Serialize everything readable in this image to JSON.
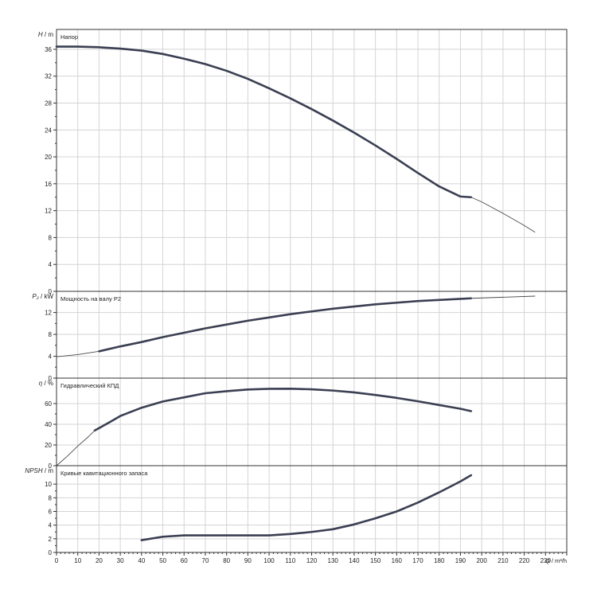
{
  "chart_data": [
    {
      "type": "line",
      "panel_label": "Напор",
      "y_axis_symbol": "H",
      "y_axis_unit": "m",
      "ylim": [
        0,
        38
      ],
      "yticks": [
        0,
        4,
        8,
        12,
        16,
        20,
        24,
        28,
        32,
        36
      ],
      "series": [
        {
          "bold": true,
          "x": [
            0,
            10,
            20,
            30,
            40,
            50,
            60,
            70,
            80,
            90,
            100,
            110,
            120,
            130,
            140,
            150,
            160,
            170,
            180,
            190,
            195
          ],
          "y": [
            36.4,
            36.4,
            36.3,
            36.1,
            35.8,
            35.3,
            34.6,
            33.8,
            32.8,
            31.6,
            30.2,
            28.7,
            27.1,
            25.4,
            23.6,
            21.7,
            19.7,
            17.6,
            15.6,
            14.1,
            14.0
          ]
        },
        {
          "bold": false,
          "x": [
            195,
            200,
            210,
            220,
            225
          ],
          "y": [
            14.0,
            13.3,
            11.6,
            9.8,
            8.8
          ]
        }
      ]
    },
    {
      "type": "line",
      "panel_label": "Мощность на валу P2",
      "y_axis_symbol": "P₂",
      "y_axis_unit": "kW",
      "ylim": [
        0,
        15
      ],
      "yticks": [
        0,
        4,
        8,
        12
      ],
      "series": [
        {
          "bold": false,
          "x": [
            0,
            10,
            20
          ],
          "y": [
            3.9,
            4.3,
            4.9
          ]
        },
        {
          "bold": true,
          "x": [
            20,
            30,
            40,
            50,
            60,
            70,
            80,
            90,
            100,
            110,
            120,
            130,
            140,
            150,
            160,
            170,
            180,
            190,
            195
          ],
          "y": [
            4.9,
            5.8,
            6.6,
            7.5,
            8.3,
            9.1,
            9.8,
            10.5,
            11.1,
            11.7,
            12.2,
            12.7,
            13.1,
            13.5,
            13.8,
            14.1,
            14.3,
            14.5,
            14.6
          ]
        },
        {
          "bold": false,
          "x": [
            195,
            210,
            225
          ],
          "y": [
            14.6,
            14.8,
            15.0
          ]
        }
      ]
    },
    {
      "type": "line",
      "panel_label": "Гидравлический КПД",
      "y_axis_symbol": "η",
      "y_axis_unit": "%",
      "ylim": [
        0,
        80
      ],
      "yticks": [
        0,
        20,
        40,
        60
      ],
      "series": [
        {
          "bold": false,
          "x": [
            0,
            5,
            10,
            15,
            18
          ],
          "y": [
            0,
            9,
            19,
            28,
            34
          ]
        },
        {
          "bold": true,
          "x": [
            18,
            25,
            30,
            40,
            50,
            60,
            70,
            80,
            90,
            100,
            110,
            120,
            130,
            140,
            150,
            160,
            170,
            180,
            190,
            195
          ],
          "y": [
            34,
            42,
            48,
            56,
            62,
            66,
            70,
            72,
            73.6,
            74.3,
            74.4,
            73.8,
            72.6,
            70.8,
            68.3,
            65.5,
            62.2,
            58.6,
            55.0,
            52.7
          ]
        }
      ]
    },
    {
      "type": "line",
      "panel_label": "Кривые кавитационного запаса",
      "y_axis_symbol": "NPSH",
      "y_axis_unit": "m",
      "ylim": [
        0,
        12
      ],
      "yticks": [
        0,
        2,
        4,
        6,
        8,
        10
      ],
      "xlabel": "Q / m³/h",
      "xlim": [
        0,
        240
      ],
      "xticks": [
        0,
        10,
        20,
        30,
        40,
        50,
        60,
        70,
        80,
        90,
        100,
        110,
        120,
        130,
        140,
        150,
        160,
        170,
        180,
        190,
        200,
        210,
        220,
        230
      ],
      "series": [
        {
          "bold": true,
          "x": [
            40,
            50,
            60,
            70,
            80,
            90,
            100,
            110,
            120,
            130,
            140,
            150,
            160,
            170,
            180,
            190,
            195
          ],
          "y": [
            1.8,
            2.3,
            2.5,
            2.5,
            2.5,
            2.5,
            2.5,
            2.7,
            3.0,
            3.4,
            4.1,
            5.0,
            6.0,
            7.3,
            8.8,
            10.4,
            11.3
          ]
        }
      ]
    }
  ]
}
